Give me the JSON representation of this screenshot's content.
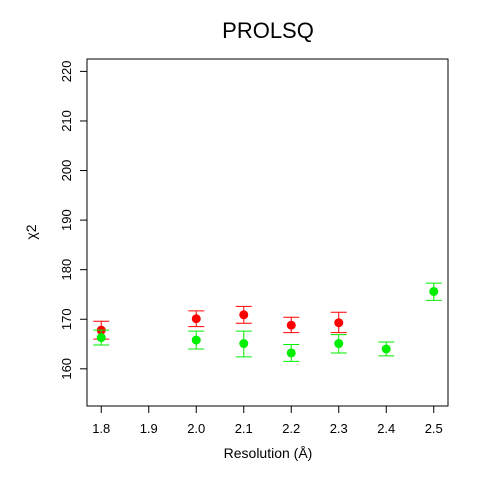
{
  "chart_data": {
    "type": "scatter",
    "title": "PROLSQ",
    "xlabel": "Resolution (Å)",
    "ylabel": "χ2",
    "xlim": [
      1.77,
      2.53
    ],
    "ylim": [
      152.5,
      222.5
    ],
    "xticks": [
      1.8,
      1.9,
      2.0,
      2.1,
      2.2,
      2.3,
      2.4,
      2.5
    ],
    "xtick_labels": [
      "1.8",
      "1.9",
      "2.0",
      "2.1",
      "2.2",
      "2.3",
      "2.4",
      "2.5"
    ],
    "yticks": [
      160,
      170,
      180,
      190,
      200,
      210,
      220
    ],
    "ytick_labels": [
      "160",
      "170",
      "180",
      "190",
      "200",
      "210",
      "220"
    ],
    "grid": false,
    "series": [
      {
        "color": "#ff0000",
        "points": [
          {
            "x": 1.8,
            "y": 167.8,
            "lo": 166.0,
            "hi": 169.6
          },
          {
            "x": 2.0,
            "y": 170.1,
            "lo": 168.5,
            "hi": 171.7
          },
          {
            "x": 2.1,
            "y": 170.9,
            "lo": 169.2,
            "hi": 172.6
          },
          {
            "x": 2.2,
            "y": 168.8,
            "lo": 167.3,
            "hi": 170.4
          },
          {
            "x": 2.3,
            "y": 169.3,
            "lo": 167.3,
            "hi": 171.4
          }
        ]
      },
      {
        "color": "#00ee00",
        "points": [
          {
            "x": 1.8,
            "y": 166.3,
            "lo": 164.8,
            "hi": 167.8
          },
          {
            "x": 2.0,
            "y": 165.8,
            "lo": 164.0,
            "hi": 167.6
          },
          {
            "x": 2.1,
            "y": 165.1,
            "lo": 162.4,
            "hi": 167.6
          },
          {
            "x": 2.2,
            "y": 163.2,
            "lo": 161.5,
            "hi": 164.9
          },
          {
            "x": 2.3,
            "y": 165.1,
            "lo": 163.2,
            "hi": 166.9
          },
          {
            "x": 2.4,
            "y": 164.0,
            "lo": 162.6,
            "hi": 165.4
          },
          {
            "x": 2.5,
            "y": 175.6,
            "lo": 173.8,
            "hi": 177.3
          }
        ]
      }
    ]
  }
}
